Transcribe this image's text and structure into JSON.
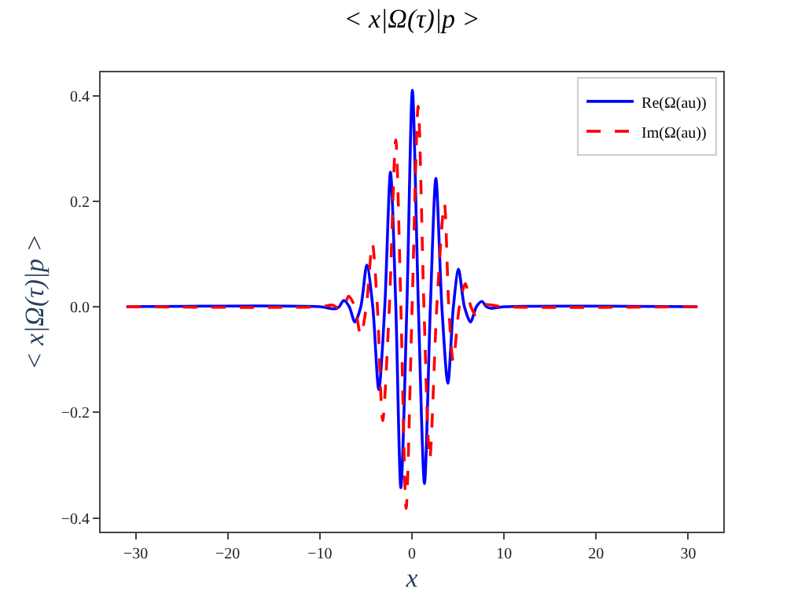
{
  "chart_data": {
    "type": "line",
    "title": "< x|Ω(τ)|p >",
    "xlabel": "x",
    "ylabel": "< x|Ω(τ)|p >",
    "xlim": [
      -33.8,
      33.8
    ],
    "ylim": [
      -0.426,
      0.444
    ],
    "xticks": [
      {
        "value": -30,
        "label": "−30"
      },
      {
        "value": -20,
        "label": "−20"
      },
      {
        "value": -10,
        "label": "−10"
      },
      0,
      10,
      20,
      30
    ],
    "yticks": [
      {
        "value": -0.4,
        "label": "−0.4"
      },
      {
        "value": -0.2,
        "label": "−0.2"
      },
      {
        "value": 0,
        "label": "0.0"
      },
      0.2,
      0.4
    ],
    "grid": false,
    "legend": "top right",
    "series": [
      {
        "name": "Re(Ω(au))",
        "color": "#0000ff",
        "line_style": "solid",
        "x": [
          -31,
          -10,
          -8.4,
          -7.9,
          -7.4,
          -6.8,
          -6.2,
          -5.55,
          -4.9,
          -4.25,
          -3.6,
          -2.95,
          -2.33,
          -1.75,
          -1.2,
          -0.55,
          0.05,
          0.7,
          1.36,
          2.0,
          2.6,
          3.25,
          3.9,
          4.5,
          5.06,
          5.7,
          6.36,
          7.0,
          7.6,
          8.1,
          8.6,
          10,
          31
        ],
        "values": [
          0,
          0,
          -0.004,
          0,
          0.012,
          0,
          -0.029,
          0,
          0.079,
          0,
          -0.157,
          0,
          0.255,
          0,
          -0.343,
          0,
          0.41,
          0,
          -0.335,
          0,
          0.243,
          0,
          -0.145,
          0,
          0.071,
          0,
          -0.029,
          0,
          0.01,
          0,
          -0.003,
          0,
          0
        ]
      },
      {
        "name": "Im(Ω(au))",
        "color": "#ff0000",
        "line_style": "dashed",
        "x": [
          -31,
          -10,
          -8.6,
          -7.8,
          -7.35,
          -6.87,
          -6.2,
          -5.57,
          -4.95,
          -4.3,
          -3.75,
          -3.18,
          -2.45,
          -1.76,
          -1.2,
          -0.63,
          0.02,
          0.68,
          1.3,
          1.93,
          2.7,
          3.52,
          4.0,
          4.48,
          5.15,
          5.8,
          6.4,
          6.93,
          7.5,
          8.0,
          10,
          31
        ],
        "values": [
          0,
          0,
          0.003,
          -0.005,
          0,
          0.02,
          0,
          -0.054,
          0,
          0.12,
          0,
          -0.216,
          0,
          0.316,
          0,
          -0.382,
          0,
          0.38,
          0,
          -0.289,
          0,
          0.196,
          0,
          -0.103,
          0,
          0.044,
          0,
          -0.015,
          0,
          0.004,
          0,
          0
        ]
      }
    ]
  }
}
